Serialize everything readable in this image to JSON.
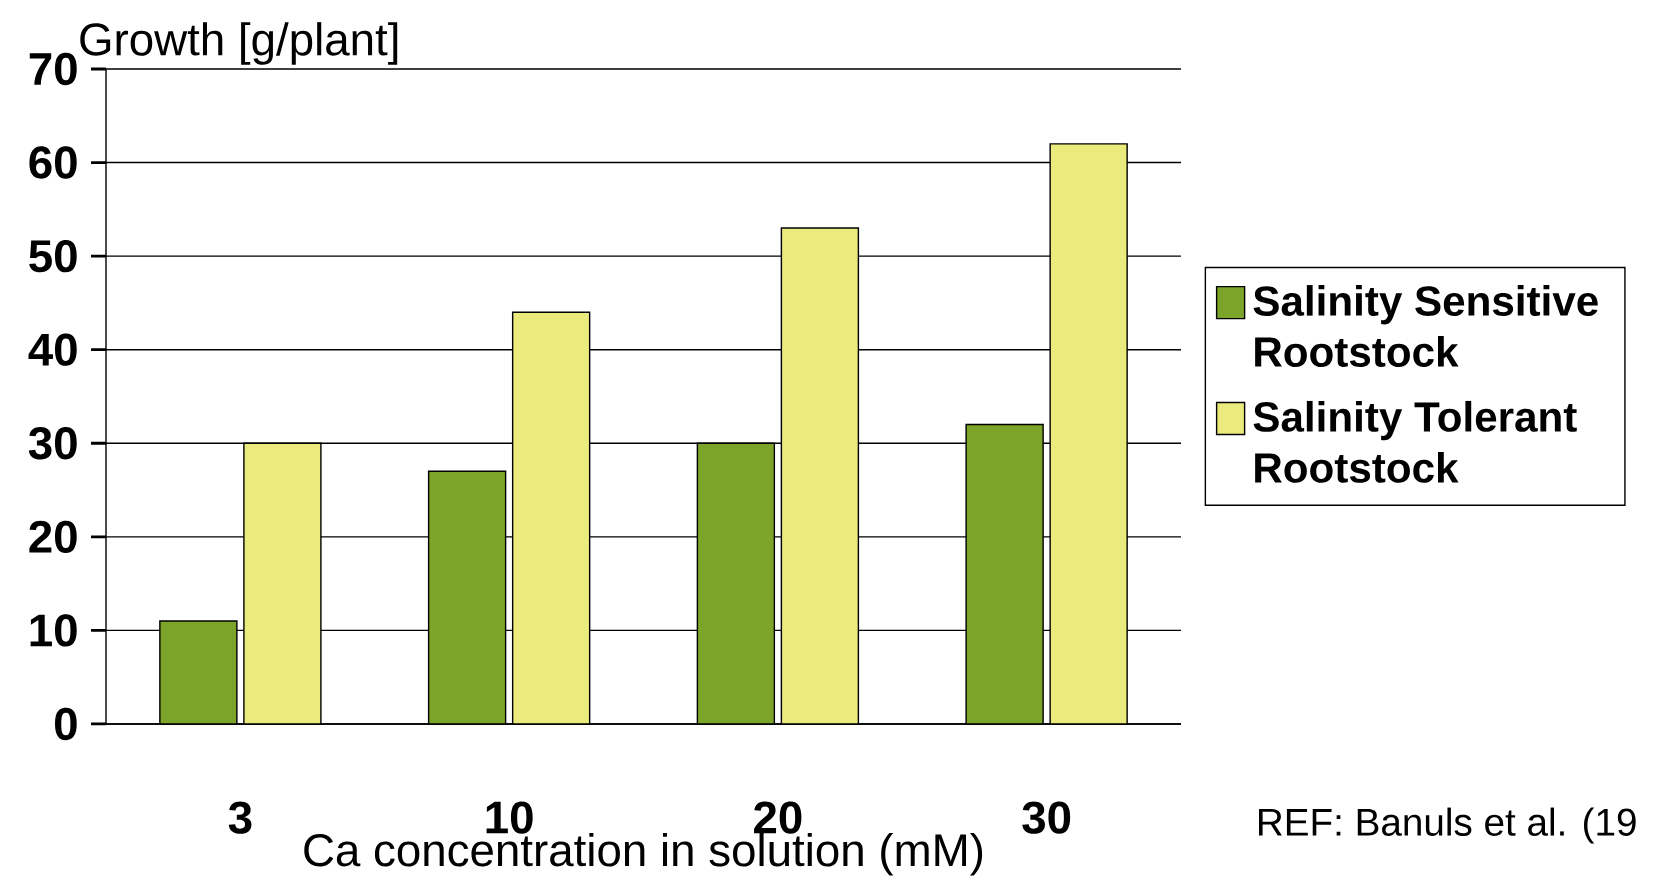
{
  "chart_data": {
    "type": "bar",
    "ylabel": "Growth [g/plant]",
    "xlabel": "Ca concentration in solution (mM)",
    "categories": [
      "3",
      "10",
      "20",
      "30"
    ],
    "series": [
      {
        "name": "Salinity Sensitive Rootstock",
        "color": "#7ba428",
        "values": [
          11,
          27,
          30,
          32
        ]
      },
      {
        "name": "Salinity Tolerant Rootstock",
        "color": "#ebeb7d",
        "values": [
          30,
          44,
          53,
          62
        ]
      }
    ],
    "ylim": [
      0,
      70
    ],
    "yticks": [
      0,
      10,
      20,
      30,
      40,
      50,
      60,
      70
    ],
    "grid": "y",
    "legend": "right",
    "annotations": [
      "REF: Banuls et al. (19"
    ]
  }
}
